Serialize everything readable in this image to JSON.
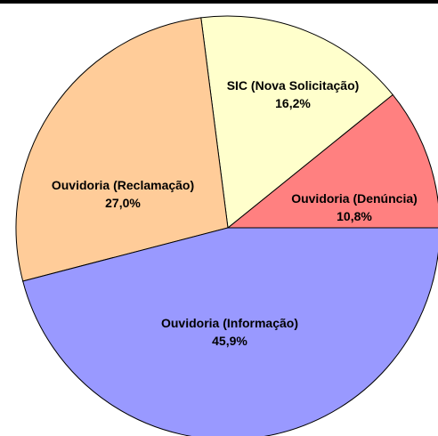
{
  "chart_data": {
    "type": "pie",
    "title": "",
    "slices": [
      {
        "label": "Ouvidoria (Denúncia)",
        "value": 10.8,
        "value_label": "10,8%",
        "color": "#FF8080"
      },
      {
        "label": "SIC (Nova Solicitação)",
        "value": 16.2,
        "value_label": "16,2%",
        "color": "#FFFFCC"
      },
      {
        "label": "Ouvidoria (Reclamação)",
        "value": 27.0,
        "value_label": "27,0%",
        "color": "#FFCC99"
      },
      {
        "label": "Ouvidoria (Informação)",
        "value": 45.9,
        "value_label": "45,9%",
        "color": "#9999FF"
      }
    ],
    "legend": "none"
  }
}
